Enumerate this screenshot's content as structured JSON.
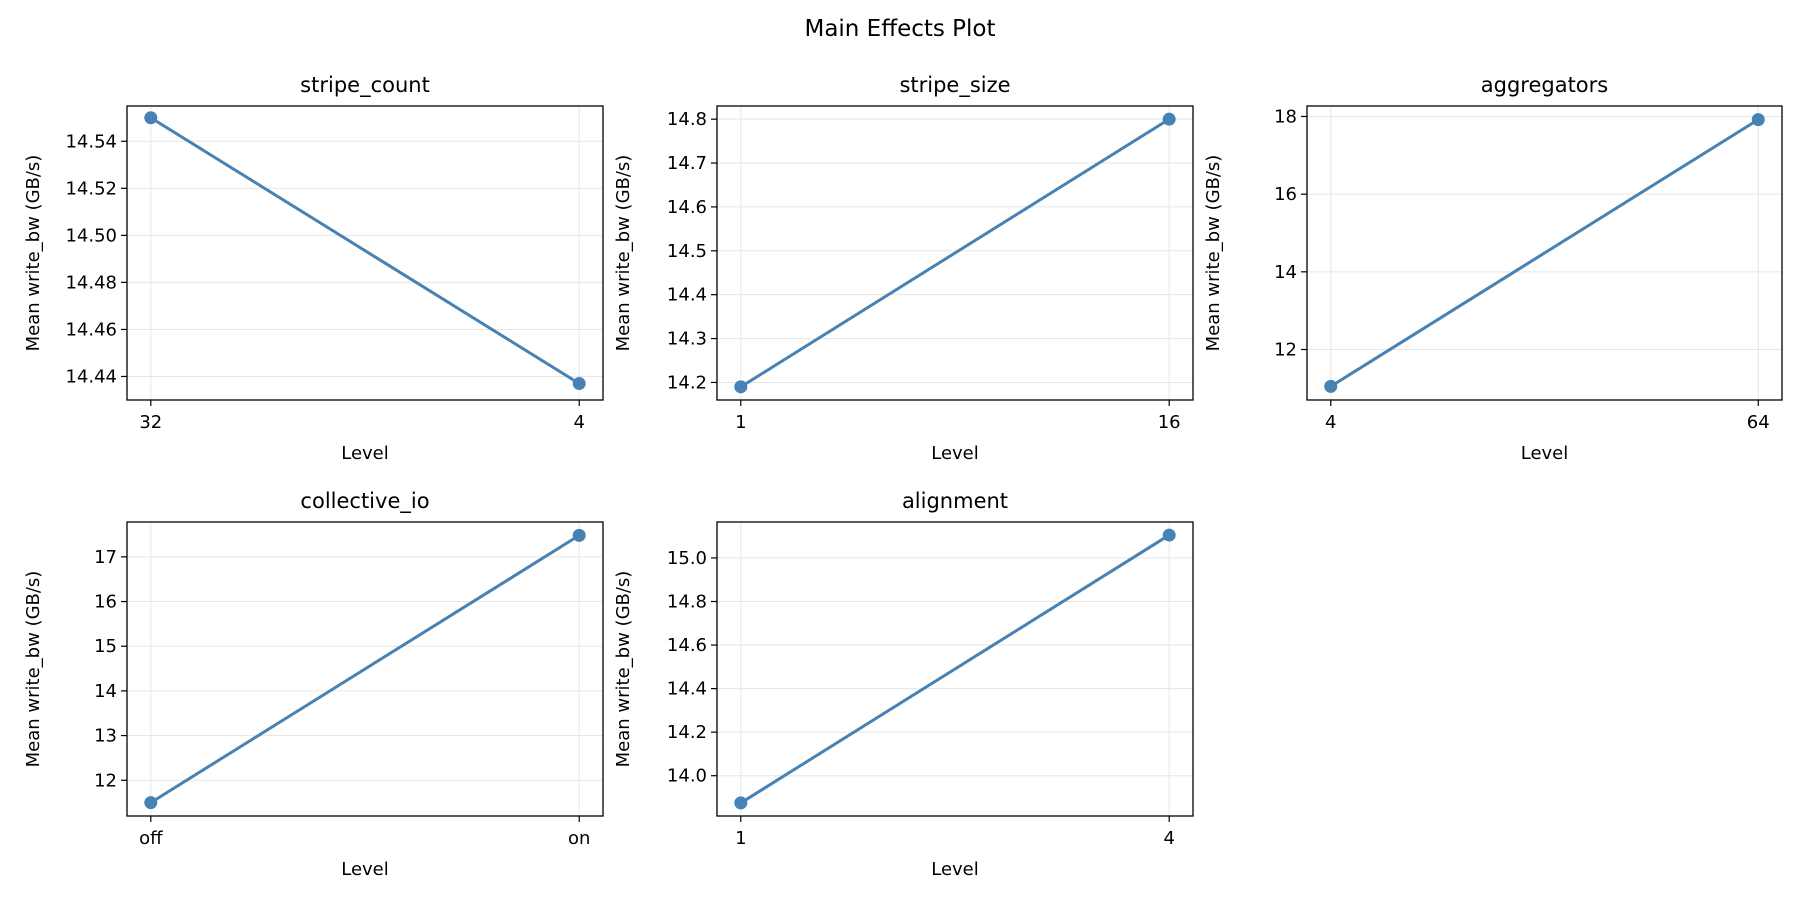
{
  "figure_title": "Main Effects Plot",
  "line_color": "#4682b4",
  "chart_data": [
    {
      "type": "line",
      "title": "stripe_count",
      "xlabel": "Level",
      "ylabel": "Mean write_bw (GB/s)",
      "categories": [
        "32",
        "4"
      ],
      "values": [
        14.55,
        14.437
      ],
      "ylim": [
        14.43,
        14.555
      ],
      "yticks": [
        14.44,
        14.46,
        14.48,
        14.5,
        14.52,
        14.54
      ],
      "ytick_labels": [
        "14.44",
        "14.46",
        "14.48",
        "14.50",
        "14.52",
        "14.54"
      ],
      "grid": true
    },
    {
      "type": "line",
      "title": "stripe_size",
      "xlabel": "Level",
      "ylabel": "Mean write_bw (GB/s)",
      "categories": [
        "1",
        "16"
      ],
      "values": [
        14.19,
        14.8
      ],
      "ylim": [
        14.16,
        14.83
      ],
      "yticks": [
        14.2,
        14.3,
        14.4,
        14.5,
        14.6,
        14.7,
        14.8
      ],
      "ytick_labels": [
        "14.2",
        "14.3",
        "14.4",
        "14.5",
        "14.6",
        "14.7",
        "14.8"
      ],
      "grid": true
    },
    {
      "type": "line",
      "title": "aggregators",
      "xlabel": "Level",
      "ylabel": "Mean write_bw (GB/s)",
      "categories": [
        "4",
        "64"
      ],
      "values": [
        11.05,
        17.92
      ],
      "ylim": [
        10.7,
        18.27
      ],
      "yticks": [
        12,
        14,
        16,
        18
      ],
      "ytick_labels": [
        "12",
        "14",
        "16",
        "18"
      ],
      "grid": true
    },
    {
      "type": "line",
      "title": "collective_io",
      "xlabel": "Level",
      "ylabel": "Mean write_bw (GB/s)",
      "categories": [
        "off",
        "on"
      ],
      "values": [
        11.5,
        17.48
      ],
      "ylim": [
        11.2,
        17.78
      ],
      "yticks": [
        12,
        13,
        14,
        15,
        16,
        17
      ],
      "ytick_labels": [
        "12",
        "13",
        "14",
        "15",
        "16",
        "17"
      ],
      "grid": true
    },
    {
      "type": "line",
      "title": "alignment",
      "xlabel": "Level",
      "ylabel": "Mean write_bw (GB/s)",
      "categories": [
        "1",
        "4"
      ],
      "values": [
        13.875,
        15.105
      ],
      "ylim": [
        13.815,
        15.165
      ],
      "yticks": [
        14.0,
        14.2,
        14.4,
        14.6,
        14.8,
        15.0
      ],
      "ytick_labels": [
        "14.0",
        "14.2",
        "14.4",
        "14.6",
        "14.8",
        "15.0"
      ],
      "grid": true
    }
  ]
}
